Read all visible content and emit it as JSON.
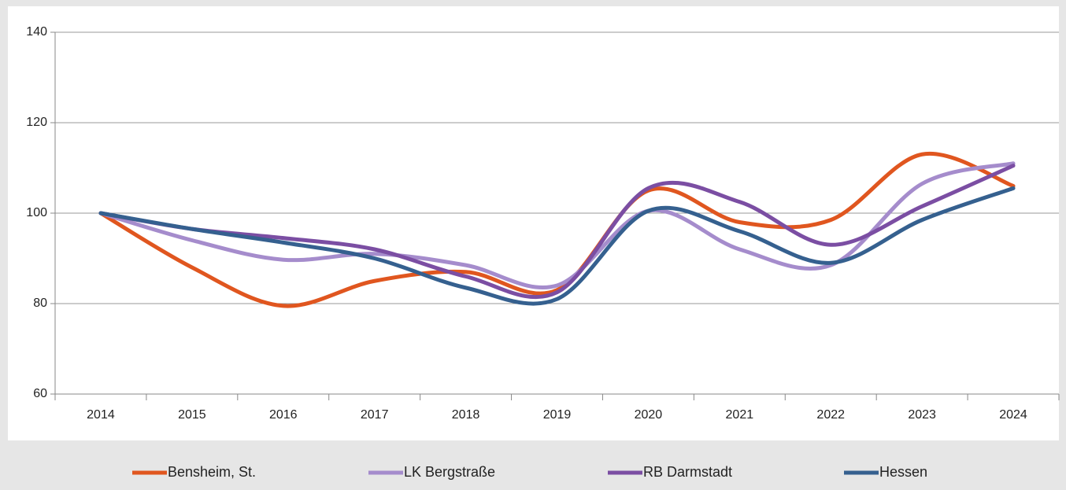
{
  "chart_data": {
    "type": "line",
    "categories": [
      "2014",
      "2015",
      "2016",
      "2017",
      "2018",
      "2019",
      "2020",
      "2021",
      "2022",
      "2023",
      "2024"
    ],
    "series": [
      {
        "name": "Bensheim, St.",
        "color": "#e0561f",
        "values": [
          100,
          88,
          79.5,
          85,
          87,
          83,
          105,
          98,
          98.5,
          113,
          106
        ]
      },
      {
        "name": "LK Bergstraße",
        "color": "#a58ccc",
        "values": [
          100,
          94,
          89.7,
          91,
          88.5,
          84,
          100.5,
          92,
          88.5,
          106.5,
          111
        ]
      },
      {
        "name": "RB Darmstadt",
        "color": "#7b4ea3",
        "values": [
          100,
          96.5,
          94.5,
          92,
          86,
          82.5,
          105.5,
          102.5,
          93,
          101.5,
          110.5
        ]
      },
      {
        "name": "Hessen",
        "color": "#35608f",
        "values": [
          100,
          96.5,
          93.5,
          90,
          83.5,
          81,
          100.5,
          96,
          89,
          98.5,
          105.5
        ]
      }
    ],
    "ylim": [
      60,
      140
    ],
    "yticks": [
      60,
      80,
      100,
      120,
      140
    ],
    "grid": true,
    "legend": "bottom"
  }
}
